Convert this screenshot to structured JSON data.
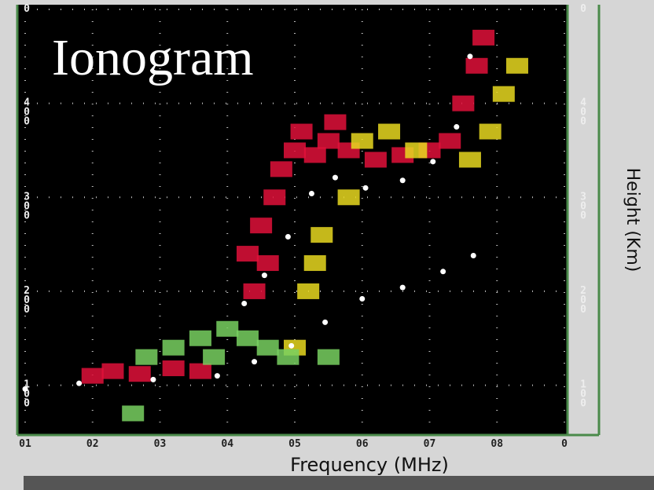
{
  "chart_data": {
    "type": "scatter",
    "title": "Ionogram",
    "xlabel": "Frequency (MHz)",
    "ylabel": "Height (Km)",
    "xlim": [
      1,
      9
    ],
    "ylim": [
      52,
      500
    ],
    "xticks": [
      {
        "value": 1,
        "label": "01"
      },
      {
        "value": 2,
        "label": "02"
      },
      {
        "value": 3,
        "label": "03"
      },
      {
        "value": 4,
        "label": "04"
      },
      {
        "value": 5,
        "label": "05"
      },
      {
        "value": 6,
        "label": "06"
      },
      {
        "value": 7,
        "label": "07"
      },
      {
        "value": 8,
        "label": "08"
      },
      {
        "value": 9,
        "label": "0"
      }
    ],
    "yticks": [
      {
        "value": 100,
        "label": "100"
      },
      200,
      300,
      400,
      {
        "value": 500,
        "label": "0"
      }
    ],
    "grid": true,
    "series": [
      {
        "color": "#e0103a",
        "marker": "block",
        "x": [
          2.0,
          2.3,
          2.7,
          3.2,
          3.6,
          4.3,
          4.5,
          4.7,
          4.8,
          5.0,
          5.3,
          5.5,
          5.8,
          6.2,
          6.6,
          7.0,
          7.3,
          7.5,
          7.7,
          7.8,
          4.4,
          4.6,
          5.1,
          5.6
        ],
        "values": [
          110,
          115,
          112,
          118,
          115,
          240,
          270,
          300,
          330,
          350,
          345,
          360,
          350,
          340,
          345,
          350,
          360,
          400,
          440,
          470,
          200,
          230,
          370,
          380
        ]
      },
      {
        "color": "#e8d820",
        "marker": "block",
        "x": [
          6.0,
          6.4,
          6.8,
          7.6,
          7.9,
          8.1,
          8.3,
          5.4,
          5.3,
          5.2,
          5.8,
          5.0
        ],
        "values": [
          360,
          370,
          350,
          340,
          370,
          410,
          440,
          260,
          230,
          200,
          300,
          140
        ]
      },
      {
        "color": "#78d060",
        "marker": "block",
        "x": [
          3.2,
          3.6,
          4.0,
          4.3,
          4.6,
          4.9,
          3.8,
          2.8,
          2.6,
          5.5
        ],
        "values": [
          140,
          150,
          160,
          150,
          140,
          130,
          130,
          130,
          70,
          130
        ]
      },
      {
        "color": "#ffffff",
        "marker": "dot",
        "x": [
          1.0,
          1.8,
          2.9,
          3.85,
          4.4,
          4.95,
          5.45,
          6.0,
          6.6,
          7.2,
          7.65
        ],
        "values": [
          96,
          102,
          106,
          110,
          125,
          142,
          167,
          192,
          204,
          221,
          238
        ]
      },
      {
        "color": "#ffffff",
        "marker": "dot",
        "x": [
          4.25,
          4.55,
          4.9,
          5.25,
          5.6,
          6.05,
          6.6,
          7.05,
          7.4,
          7.6
        ],
        "values": [
          187,
          217,
          258,
          304,
          321,
          310,
          318,
          338,
          375,
          450
        ]
      }
    ]
  }
}
